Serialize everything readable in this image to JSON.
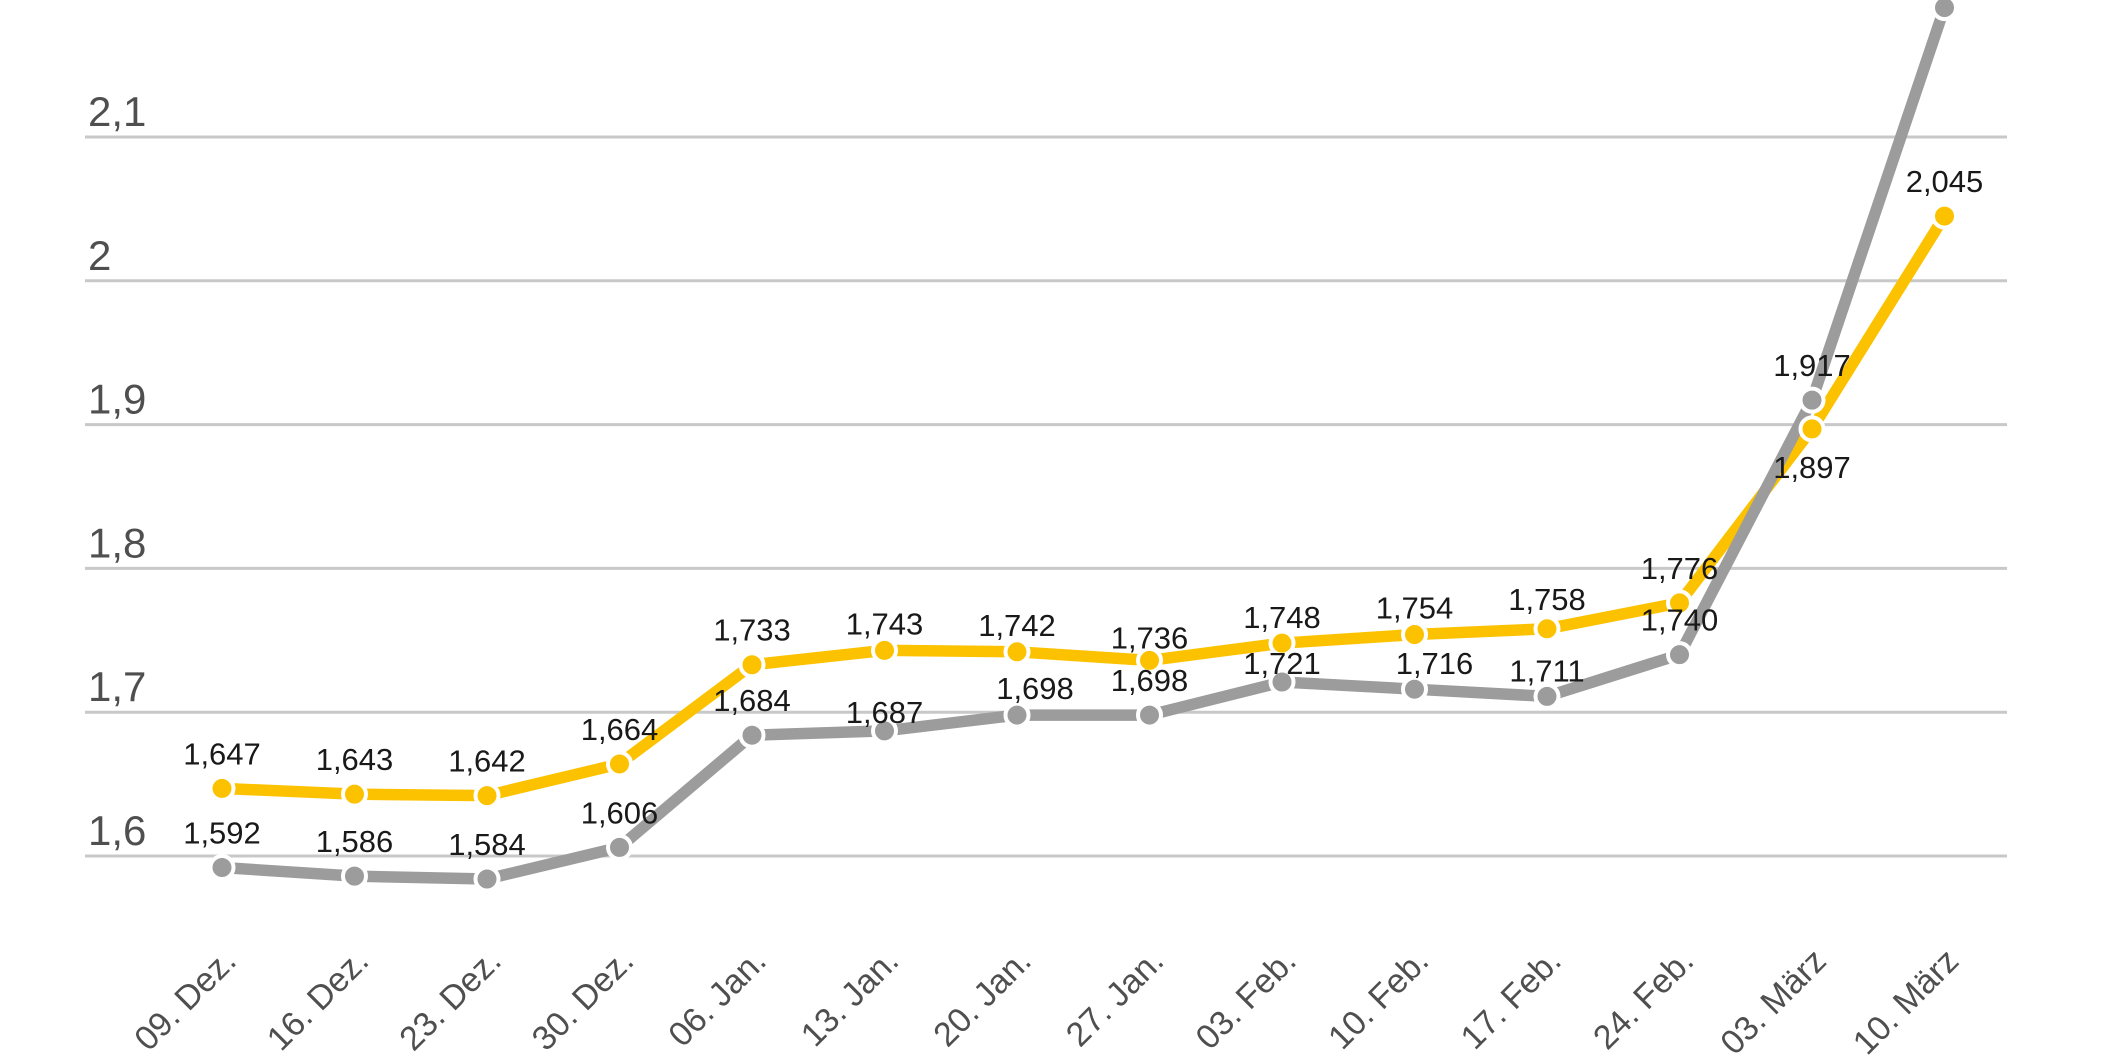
{
  "page": {
    "background": "#FFFFFF"
  },
  "chart_data": {
    "type": "line",
    "title": "",
    "subtitle": "",
    "legend": "none",
    "grid": "horizontal",
    "decimal_style": "comma",
    "categories": [
      "09. Dez.",
      "16. Dez.",
      "23. Dez.",
      "30. Dez.",
      "06. Jan.",
      "13. Jan.",
      "20. Jan.",
      "27. Jan.",
      "03. Feb.",
      "10. Feb.",
      "17. Feb.",
      "24. Feb.",
      "03. März",
      "10. März"
    ],
    "x_tick_rotation_deg": 45,
    "y_axis": {
      "tick_labels": [
        "2,1",
        "2",
        "1,9",
        "1,8",
        "1,7",
        "1,6"
      ],
      "tick_values": [
        2.1,
        2.0,
        1.9,
        1.8,
        1.7,
        1.6
      ],
      "visible_min": 1.6,
      "visible_max": 2.1
    },
    "series": [
      {
        "name": "upper-yellow-line",
        "color": "#FCC200",
        "values": [
          1.647,
          1.643,
          1.642,
          1.664,
          1.733,
          1.743,
          1.742,
          1.736,
          1.748,
          1.754,
          1.758,
          1.776,
          1.897,
          2.045
        ],
        "labels": [
          "1,647",
          "1,643",
          "1,642",
          "1,664",
          "1,733",
          "1,743",
          "1,742",
          "1,736",
          "1,748",
          "1,754",
          "1,758",
          "1,776",
          "1,897",
          "2,045"
        ],
        "label_layout": {
          "default_dy": -24,
          "dy_overrides": {
            "5": -16,
            "6": -16,
            "7": -12,
            "8": -15,
            "9": -16,
            "10": -19,
            "12": 49
          },
          "dx_overrides": {}
        }
      },
      {
        "name": "lower-gray-line",
        "color": "#9C9C9C",
        "values": [
          1.592,
          1.586,
          1.584,
          1.606,
          1.684,
          1.687,
          1.698,
          1.698,
          1.721,
          1.716,
          1.711,
          1.74,
          1.917,
          2.19
        ],
        "labels": [
          "1,592",
          "1,586",
          "1,584",
          "1,606",
          "1,684",
          "1,687",
          "1,698",
          "1,698",
          "1,721",
          "1,716",
          "1,711",
          "1,740",
          "1,917",
          ""
        ],
        "label_layout": {
          "default_dy": -24,
          "dy_overrides": {
            "5": -8,
            "6": -16,
            "8": -8,
            "9": -15,
            "10": -15
          },
          "dx_overrides": {
            "6": 18,
            "9": 20
          }
        }
      }
    ],
    "colors": {
      "grid_line": "#C8C8C8",
      "axis_text": "#4F4F4F",
      "point_label_text": "#191919",
      "marker_halo": "#FFFFFF"
    }
  }
}
